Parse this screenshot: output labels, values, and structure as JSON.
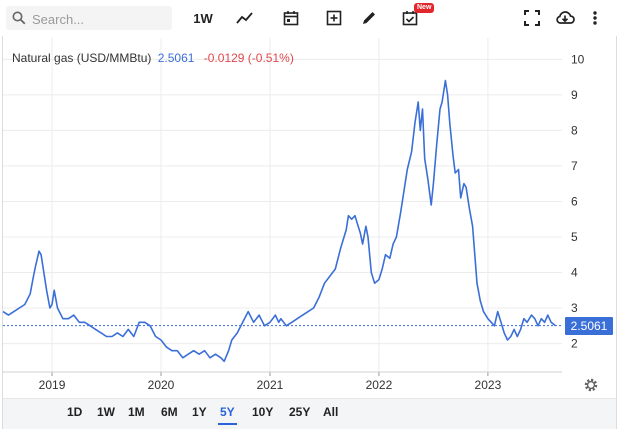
{
  "toolbar": {
    "search_placeholder": "Search...",
    "interval_label": "1W",
    "new_badge": "New",
    "icons": [
      "search-icon",
      "line-chart-icon",
      "calendar-icon",
      "add-box-icon",
      "pencil-icon",
      "checklist-icon",
      "fullscreen-icon",
      "cloud-download-icon",
      "more-vert-icon"
    ]
  },
  "legend": {
    "name": "Natural gas (USD/MMBtu)",
    "price": "2.5061",
    "change": "-0.0129 (-0.51%)"
  },
  "last_price_tag": "2.5061",
  "colors": {
    "line": "#3b6fd8",
    "accent": "#2b63d8",
    "negative": "#e0474c"
  },
  "range_buttons": [
    {
      "label": "1D",
      "active": false
    },
    {
      "label": "1W",
      "active": false
    },
    {
      "label": "1M",
      "active": false
    },
    {
      "label": "6M",
      "active": false
    },
    {
      "label": "1Y",
      "active": false
    },
    {
      "label": "5Y",
      "active": true
    },
    {
      "label": "10Y",
      "active": false
    },
    {
      "label": "25Y",
      "active": false
    },
    {
      "label": "All",
      "active": false
    }
  ],
  "chart_data": {
    "type": "line",
    "series": [
      {
        "values": [
          [
            2018.55,
            2.9
          ],
          [
            2018.6,
            2.8
          ],
          [
            2018.65,
            2.9
          ],
          [
            2018.7,
            3.0
          ],
          [
            2018.75,
            3.1
          ],
          [
            2018.8,
            3.4
          ],
          [
            2018.83,
            3.9
          ],
          [
            2018.85,
            4.2
          ],
          [
            2018.88,
            4.6
          ],
          [
            2018.9,
            4.5
          ],
          [
            2018.92,
            4.1
          ],
          [
            2018.95,
            3.5
          ],
          [
            2018.98,
            3.0
          ],
          [
            2019.0,
            3.1
          ],
          [
            2019.02,
            3.5
          ],
          [
            2019.05,
            3.0
          ],
          [
            2019.1,
            2.7
          ],
          [
            2019.15,
            2.7
          ],
          [
            2019.2,
            2.8
          ],
          [
            2019.25,
            2.6
          ],
          [
            2019.3,
            2.6
          ],
          [
            2019.35,
            2.5
          ],
          [
            2019.4,
            2.4
          ],
          [
            2019.45,
            2.3
          ],
          [
            2019.5,
            2.2
          ],
          [
            2019.55,
            2.2
          ],
          [
            2019.6,
            2.3
          ],
          [
            2019.65,
            2.2
          ],
          [
            2019.7,
            2.4
          ],
          [
            2019.75,
            2.2
          ],
          [
            2019.8,
            2.6
          ],
          [
            2019.85,
            2.6
          ],
          [
            2019.9,
            2.5
          ],
          [
            2019.95,
            2.2
          ],
          [
            2020.0,
            2.1
          ],
          [
            2020.05,
            1.9
          ],
          [
            2020.1,
            1.8
          ],
          [
            2020.15,
            1.8
          ],
          [
            2020.2,
            1.6
          ],
          [
            2020.25,
            1.7
          ],
          [
            2020.3,
            1.8
          ],
          [
            2020.35,
            1.7
          ],
          [
            2020.4,
            1.8
          ],
          [
            2020.45,
            1.6
          ],
          [
            2020.5,
            1.7
          ],
          [
            2020.55,
            1.6
          ],
          [
            2020.58,
            1.5
          ],
          [
            2020.62,
            1.8
          ],
          [
            2020.65,
            2.1
          ],
          [
            2020.7,
            2.3
          ],
          [
            2020.75,
            2.6
          ],
          [
            2020.8,
            2.9
          ],
          [
            2020.85,
            2.6
          ],
          [
            2020.9,
            2.8
          ],
          [
            2020.95,
            2.5
          ],
          [
            2021.0,
            2.6
          ],
          [
            2021.05,
            2.8
          ],
          [
            2021.08,
            2.6
          ],
          [
            2021.1,
            2.7
          ],
          [
            2021.15,
            2.5
          ],
          [
            2021.2,
            2.6
          ],
          [
            2021.25,
            2.7
          ],
          [
            2021.3,
            2.8
          ],
          [
            2021.35,
            2.9
          ],
          [
            2021.4,
            3.0
          ],
          [
            2021.45,
            3.3
          ],
          [
            2021.5,
            3.7
          ],
          [
            2021.55,
            3.9
          ],
          [
            2021.6,
            4.1
          ],
          [
            2021.65,
            4.7
          ],
          [
            2021.7,
            5.2
          ],
          [
            2021.72,
            5.6
          ],
          [
            2021.75,
            5.5
          ],
          [
            2021.78,
            5.6
          ],
          [
            2021.8,
            5.4
          ],
          [
            2021.83,
            5.1
          ],
          [
            2021.85,
            4.8
          ],
          [
            2021.88,
            5.3
          ],
          [
            2021.9,
            5.0
          ],
          [
            2021.93,
            4.0
          ],
          [
            2021.96,
            3.7
          ],
          [
            2022.0,
            3.8
          ],
          [
            2022.03,
            4.1
          ],
          [
            2022.06,
            4.5
          ],
          [
            2022.1,
            4.4
          ],
          [
            2022.13,
            4.8
          ],
          [
            2022.16,
            5.0
          ],
          [
            2022.2,
            5.7
          ],
          [
            2022.23,
            6.3
          ],
          [
            2022.26,
            6.9
          ],
          [
            2022.3,
            7.4
          ],
          [
            2022.33,
            8.2
          ],
          [
            2022.36,
            8.8
          ],
          [
            2022.38,
            8.0
          ],
          [
            2022.4,
            8.6
          ],
          [
            2022.42,
            7.2
          ],
          [
            2022.45,
            6.6
          ],
          [
            2022.48,
            5.9
          ],
          [
            2022.5,
            6.5
          ],
          [
            2022.53,
            7.6
          ],
          [
            2022.56,
            8.6
          ],
          [
            2022.58,
            8.8
          ],
          [
            2022.61,
            9.4
          ],
          [
            2022.63,
            9.0
          ],
          [
            2022.65,
            8.2
          ],
          [
            2022.68,
            7.3
          ],
          [
            2022.7,
            6.8
          ],
          [
            2022.73,
            6.9
          ],
          [
            2022.75,
            6.1
          ],
          [
            2022.78,
            6.5
          ],
          [
            2022.8,
            6.4
          ],
          [
            2022.83,
            5.8
          ],
          [
            2022.86,
            5.3
          ],
          [
            2022.88,
            4.5
          ],
          [
            2022.9,
            3.7
          ],
          [
            2022.93,
            3.2
          ],
          [
            2022.96,
            2.9
          ],
          [
            2023.0,
            2.7
          ],
          [
            2023.03,
            2.6
          ],
          [
            2023.06,
            2.5
          ],
          [
            2023.09,
            2.9
          ],
          [
            2023.12,
            2.6
          ],
          [
            2023.15,
            2.3
          ],
          [
            2023.18,
            2.1
          ],
          [
            2023.21,
            2.2
          ],
          [
            2023.24,
            2.4
          ],
          [
            2023.27,
            2.2
          ],
          [
            2023.3,
            2.4
          ],
          [
            2023.33,
            2.7
          ],
          [
            2023.36,
            2.6
          ],
          [
            2023.4,
            2.8
          ],
          [
            2023.43,
            2.7
          ],
          [
            2023.46,
            2.5
          ],
          [
            2023.49,
            2.7
          ],
          [
            2023.52,
            2.6
          ],
          [
            2023.55,
            2.8
          ],
          [
            2023.58,
            2.6
          ],
          [
            2023.62,
            2.5061
          ]
        ]
      }
    ],
    "x_ticks": [
      "2019",
      "2020",
      "2021",
      "2022",
      "2023"
    ],
    "x_tick_values": [
      2019,
      2020,
      2021,
      2022,
      2023
    ],
    "y_ticks": [
      "2",
      "3",
      "4",
      "5",
      "6",
      "7",
      "8",
      "9",
      "10"
    ],
    "y_tick_values": [
      2,
      3,
      4,
      5,
      6,
      7,
      8,
      9,
      10
    ],
    "xlim": [
      2018.55,
      2023.68
    ],
    "ylim": [
      1.2,
      10.6
    ],
    "last_value": 2.5061,
    "grid": true,
    "legend_placement": "top-left"
  }
}
